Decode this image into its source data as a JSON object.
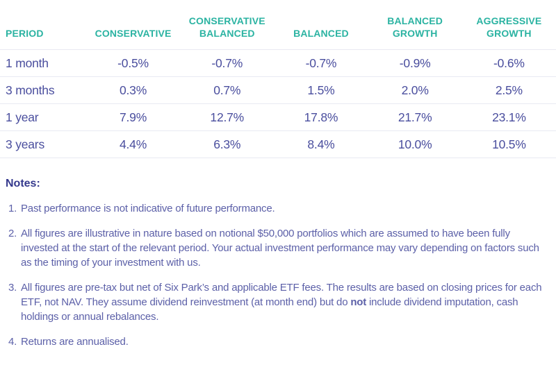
{
  "colors": {
    "header_text": "#2BB3A2",
    "cell_text": "#4A4E9E",
    "notes_text": "#5C60A8",
    "notes_heading_text": "#35398D",
    "divider": "#E8E9F2",
    "background": "#FFFFFF"
  },
  "chart_data": {
    "type": "table",
    "title": "",
    "columns": [
      "PERIOD",
      "CONSERVATIVE",
      "CONSERVATIVE BALANCED",
      "BALANCED",
      "BALANCED GROWTH",
      "AGGRESSIVE GROWTH"
    ],
    "rows": [
      {
        "period": "1 month",
        "values": [
          "-0.5%",
          "-0.7%",
          "-0.7%",
          "-0.9%",
          "-0.6%"
        ]
      },
      {
        "period": "3 months",
        "values": [
          "0.3%",
          "0.7%",
          "1.5%",
          "2.0%",
          "2.5%"
        ]
      },
      {
        "period": "1 year",
        "values": [
          "7.9%",
          "12.7%",
          "17.8%",
          "21.7%",
          "23.1%"
        ]
      },
      {
        "period": "3 years",
        "values": [
          "4.4%",
          "6.3%",
          "8.4%",
          "10.0%",
          "10.5%"
        ]
      }
    ]
  },
  "notes": {
    "heading": "Notes:",
    "items": [
      {
        "number": "1.",
        "text": "Past performance is not indicative of future performance."
      },
      {
        "number": "2.",
        "text": "All figures are illustrative in nature based on notional $50,000 portfolios which are assumed to have been fully invested at the start of the relevant period. Your actual investment performance may vary depending on factors such as the timing of your investment with us."
      },
      {
        "number": "3.",
        "text_pre": "All figures are pre-tax but net of Six Park’s and applicable ETF fees. The results are based on closing prices for each ETF, not NAV. They assume dividend reinvestment (at month end) but do ",
        "text_bold": "not",
        "text_post": " include dividend imputation, cash holdings or annual rebalances."
      },
      {
        "number": "4.",
        "text": "Returns are annualised."
      }
    ]
  }
}
